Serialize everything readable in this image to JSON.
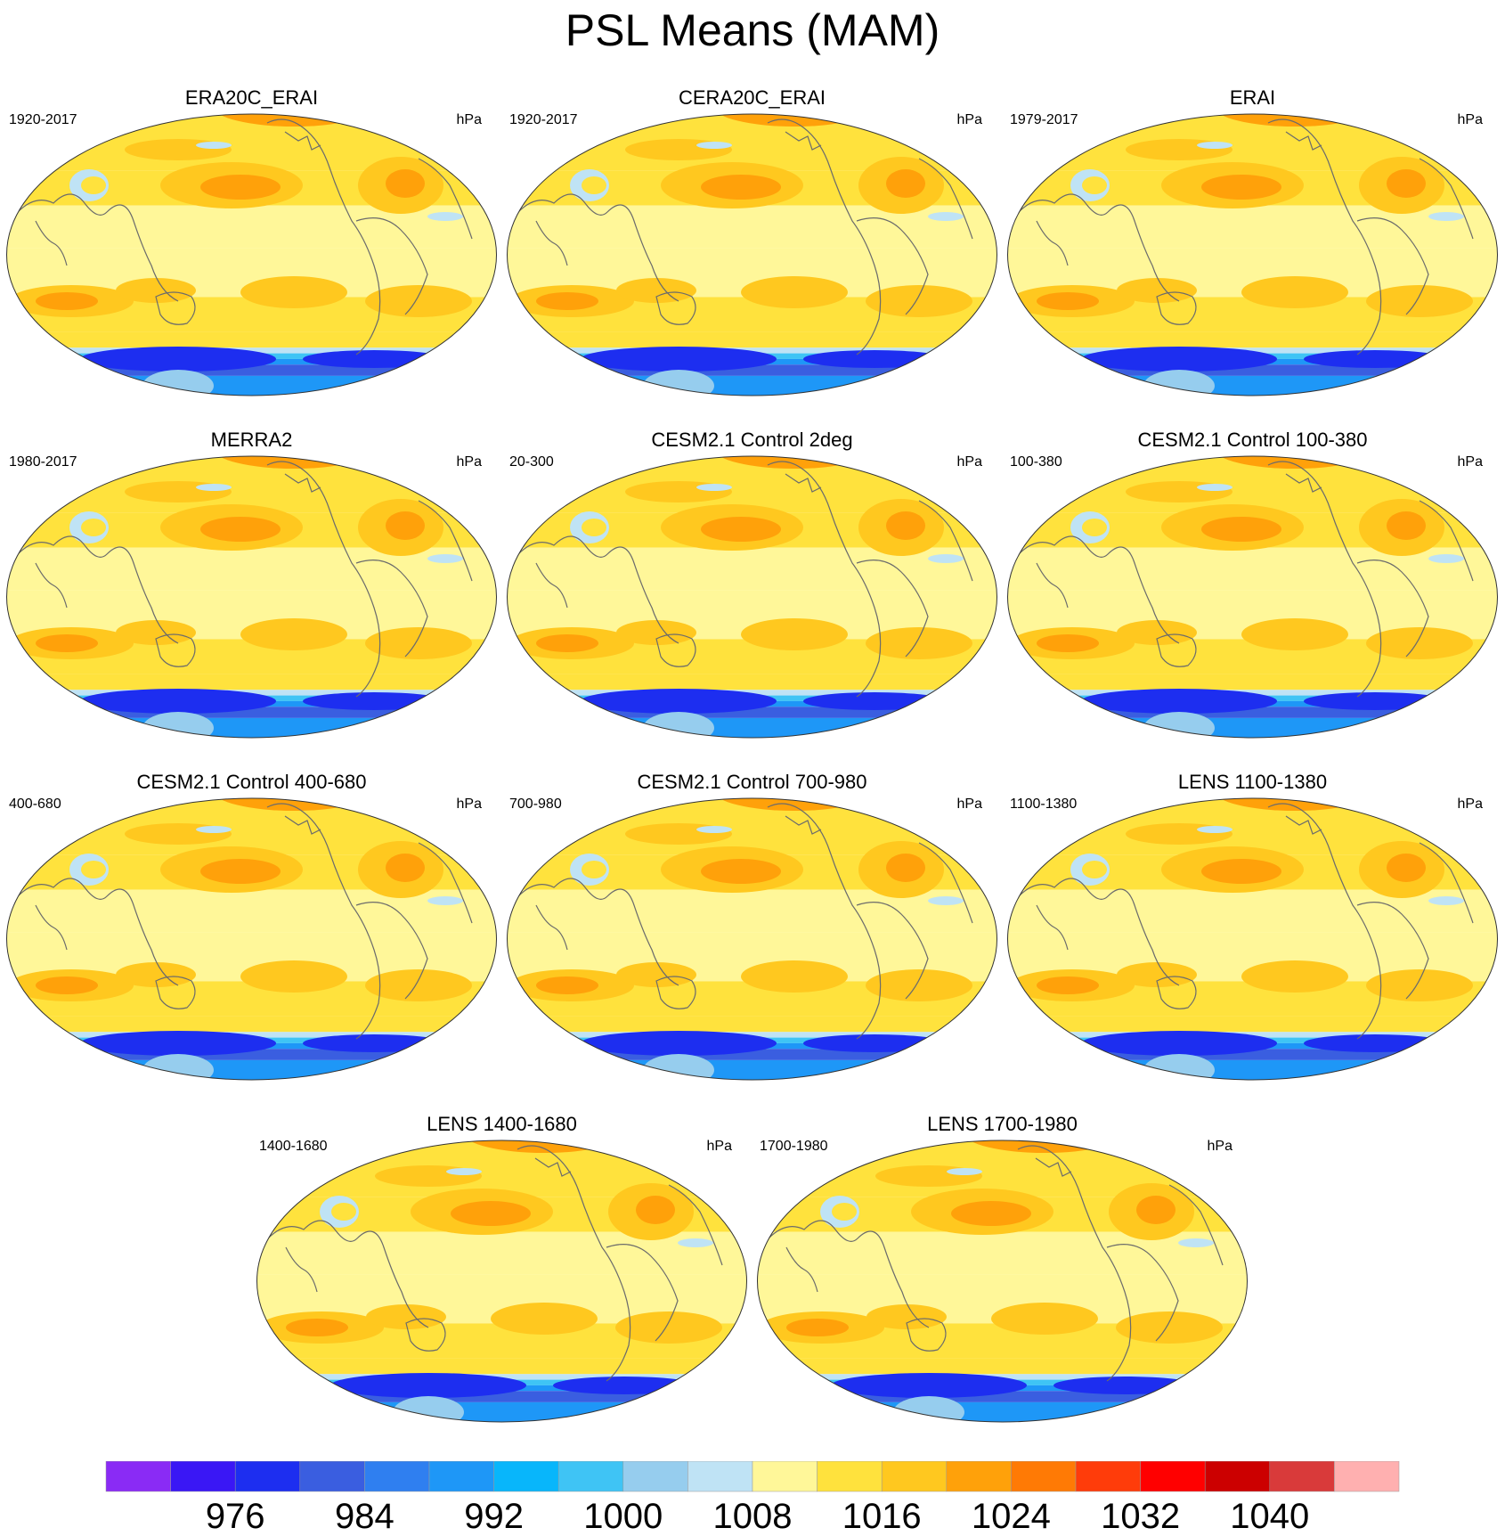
{
  "title": "PSL Means (MAM)",
  "units": "hPa",
  "colors": {
    "coastline": "#6b6b6b",
    "levels": [
      "#8a2bf5",
      "#3a17f5",
      "#1d2ef0",
      "#3a5ee0",
      "#2f7ff0",
      "#1e97f7",
      "#08b6fb",
      "#3fc4f5",
      "#96cdee",
      "#bfe3f5",
      "#fff799",
      "#ffe23d",
      "#ffc81f",
      "#ffa10a",
      "#ff7a05",
      "#ff3c0a",
      "#ff0000",
      "#cc0000",
      "#d93a3a",
      "#ffb0b0"
    ]
  },
  "chart_data": {
    "type": "heatmap",
    "projection": "robinson",
    "variable": "PSL",
    "season": "MAM",
    "colorbar": {
      "tick_labels": [
        "976",
        "984",
        "992",
        "1000",
        "1008",
        "1016",
        "1024",
        "1032",
        "1040"
      ],
      "levels": [
        972,
        976,
        980,
        984,
        988,
        992,
        996,
        1000,
        1004,
        1008,
        1012,
        1016,
        1020,
        1024,
        1028,
        1032,
        1036,
        1040,
        1044
      ],
      "orientation": "horizontal",
      "placement": "bottom"
    },
    "panels": [
      {
        "title": "ERA20C_ERAI",
        "period": "1920-2017",
        "units": "hPa"
      },
      {
        "title": "CERA20C_ERAI",
        "period": "1920-2017",
        "units": "hPa"
      },
      {
        "title": "ERAI",
        "period": "1979-2017",
        "units": "hPa"
      },
      {
        "title": "MERRA2",
        "period": "1980-2017",
        "units": "hPa"
      },
      {
        "title": "CESM2.1 Control 2deg",
        "period": "20-300",
        "units": "hPa"
      },
      {
        "title": "CESM2.1 Control 100-380",
        "period": "100-380",
        "units": "hPa"
      },
      {
        "title": "CESM2.1 Control 400-680",
        "period": "400-680",
        "units": "hPa"
      },
      {
        "title": "CESM2.1 Control 700-980",
        "period": "700-980",
        "units": "hPa"
      },
      {
        "title": "LENS 1100-1380",
        "period": "1100-1380",
        "units": "hPa"
      },
      {
        "title": "LENS 1400-1680",
        "period": "1400-1680",
        "units": "hPa"
      },
      {
        "title": "LENS 1700-1980",
        "period": "1700-1980",
        "units": "hPa"
      }
    ]
  }
}
